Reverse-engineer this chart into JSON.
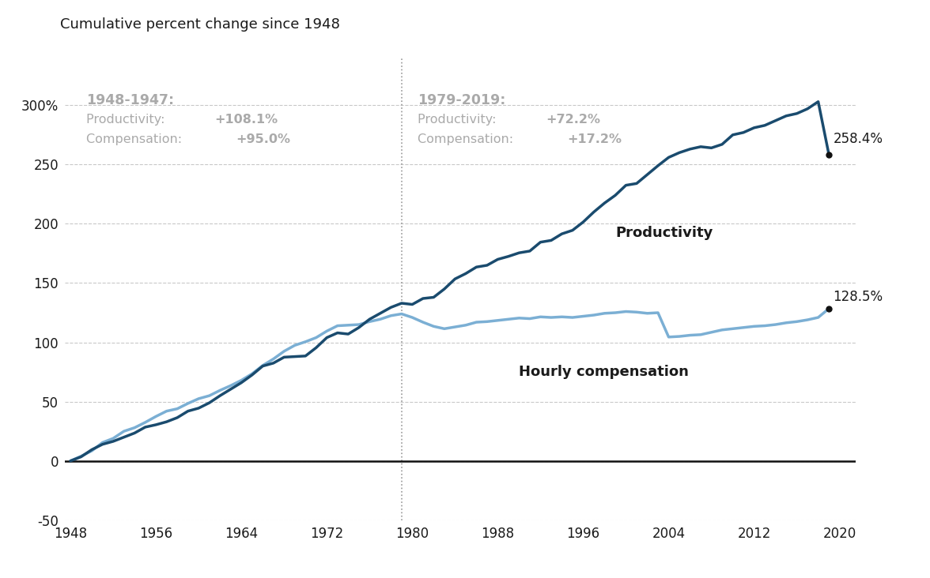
{
  "title": "Cumulative percent change since 1948",
  "title_fontsize": 13,
  "productivity_years": [
    1948,
    1949,
    1950,
    1951,
    1952,
    1953,
    1954,
    1955,
    1956,
    1957,
    1958,
    1959,
    1960,
    1961,
    1962,
    1963,
    1964,
    1965,
    1966,
    1967,
    1968,
    1969,
    1970,
    1971,
    1972,
    1973,
    1974,
    1975,
    1976,
    1977,
    1978,
    1979,
    1980,
    1981,
    1982,
    1983,
    1984,
    1985,
    1986,
    1987,
    1988,
    1989,
    1990,
    1991,
    1992,
    1993,
    1994,
    1995,
    1996,
    1997,
    1998,
    1999,
    2000,
    2001,
    2002,
    2003,
    2004,
    2005,
    2006,
    2007,
    2008,
    2009,
    2010,
    2011,
    2012,
    2013,
    2014,
    2015,
    2016,
    2017,
    2018,
    2019
  ],
  "productivity_values": [
    0,
    3.5,
    9.5,
    14.0,
    16.5,
    20.0,
    23.5,
    28.5,
    30.5,
    33.0,
    36.5,
    42.0,
    44.5,
    49.0,
    55.0,
    60.5,
    66.0,
    72.5,
    80.0,
    82.5,
    87.5,
    88.0,
    88.5,
    95.5,
    104.0,
    108.0,
    107.0,
    112.5,
    119.5,
    124.5,
    129.5,
    133.0,
    132.0,
    137.0,
    138.0,
    145.0,
    153.5,
    158.0,
    163.5,
    165.0,
    170.0,
    172.5,
    175.5,
    177.0,
    184.5,
    186.0,
    191.5,
    194.5,
    201.5,
    210.0,
    217.5,
    224.0,
    232.5,
    234.0,
    241.5,
    249.0,
    256.0,
    260.0,
    263.0,
    265.0,
    264.0,
    267.0,
    275.0,
    277.0,
    281.0,
    283.0,
    287.0,
    291.0,
    293.0,
    297.0,
    303.0,
    258.4
  ],
  "compensation_years": [
    1948,
    1949,
    1950,
    1951,
    1952,
    1953,
    1954,
    1955,
    1956,
    1957,
    1958,
    1959,
    1960,
    1961,
    1962,
    1963,
    1964,
    1965,
    1966,
    1967,
    1968,
    1969,
    1970,
    1971,
    1972,
    1973,
    1974,
    1975,
    1976,
    1977,
    1978,
    1979,
    1980,
    1981,
    1982,
    1983,
    1984,
    1985,
    1986,
    1987,
    1988,
    1989,
    1990,
    1991,
    1992,
    1993,
    1994,
    1995,
    1996,
    1997,
    1998,
    1999,
    2000,
    2001,
    2002,
    2003,
    2004,
    2005,
    2006,
    2007,
    2008,
    2009,
    2010,
    2011,
    2012,
    2013,
    2014,
    2015,
    2016,
    2017,
    2018,
    2019
  ],
  "compensation_values": [
    0,
    4.0,
    8.5,
    15.5,
    19.0,
    25.0,
    28.0,
    32.5,
    37.5,
    42.0,
    44.0,
    48.5,
    52.5,
    55.0,
    59.5,
    63.5,
    68.0,
    73.5,
    80.5,
    86.0,
    92.5,
    97.5,
    100.5,
    104.0,
    109.5,
    114.0,
    114.5,
    115.0,
    117.5,
    119.5,
    122.5,
    124.0,
    121.0,
    117.0,
    113.5,
    111.5,
    113.0,
    114.5,
    117.0,
    117.5,
    118.5,
    119.5,
    120.5,
    120.0,
    121.5,
    121.0,
    121.5,
    121.0,
    122.0,
    123.0,
    124.5,
    125.0,
    126.0,
    125.5,
    124.5,
    125.0,
    104.5,
    105.0,
    106.0,
    106.5,
    108.5,
    110.5,
    111.5,
    112.5,
    113.5,
    114.0,
    115.0,
    116.5,
    117.5,
    119.0,
    121.0,
    128.5
  ],
  "prod_color": "#1a4b6e",
  "comp_color": "#7bafd4",
  "line_width": 2.5,
  "divider_year": 1979,
  "ylim": [
    -50,
    340
  ],
  "xlim": [
    1947.5,
    2021.5
  ],
  "yticks": [
    -50,
    0,
    50,
    100,
    150,
    200,
    250,
    300
  ],
  "ytick_labels": [
    "-50",
    "0",
    "50",
    "100",
    "150",
    "200",
    "250",
    "300%"
  ],
  "xticks": [
    1948,
    1956,
    1964,
    1972,
    1980,
    1988,
    1996,
    2004,
    2012,
    2020
  ],
  "ann_left_title": "1948-1947:",
  "ann_left_prod_text": "Productivity: ",
  "ann_left_prod_val": "+108.1%",
  "ann_left_comp_text": "Compensation: ",
  "ann_left_comp_val": "+95.0%",
  "ann_right_title": "1979-2019:",
  "ann_right_prod_text": "Productivity: ",
  "ann_right_prod_val": "+72.2%",
  "ann_right_comp_text": "Compensation: ",
  "ann_right_comp_val": "+17.2%",
  "end_label_prod": "258.4%",
  "end_label_comp": "128.5%",
  "prod_label_text": "Productivity",
  "comp_label_text": "Hourly compensation",
  "bg_color": "#ffffff",
  "text_color": "#1a1a1a",
  "grid_color": "#bbbbbb",
  "ann_color": "#aaaaaa",
  "ann_bold_color": "#888888"
}
